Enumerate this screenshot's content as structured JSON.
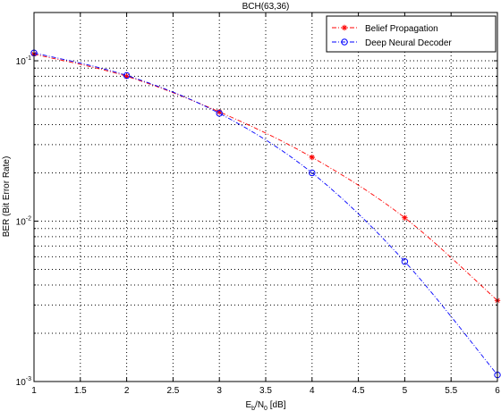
{
  "chart_data": {
    "type": "line",
    "title": "BCH(63,36)",
    "xlabel": {
      "base": "E",
      "sub1": "b",
      "mid": "/N",
      "sub2": "0",
      "tail": " [dB]"
    },
    "ylabel": "BER (Bit Error Rate)",
    "xlim": [
      1,
      6
    ],
    "ylim": [
      0.001,
      0.2
    ],
    "yscale": "log",
    "grid": true,
    "legend_position": "top-right",
    "x_ticks": [
      1,
      1.5,
      2,
      2.5,
      3,
      3.5,
      4,
      4.5,
      5,
      5.5,
      6
    ],
    "x_tick_labels": [
      "1",
      "1.5",
      "2",
      "2.5",
      "3",
      "3.5",
      "4",
      "4.5",
      "5",
      "5.5",
      "6"
    ],
    "y_ticks": [
      {
        "value": 0.1,
        "base": "10",
        "exp": "-1"
      },
      {
        "value": 0.01,
        "base": "10",
        "exp": "-2"
      },
      {
        "value": 0.001,
        "base": "10",
        "exp": "-3"
      }
    ],
    "series": [
      {
        "name": "Belief Propagation",
        "color": "#ff0000",
        "marker": "star",
        "line": "dashdot",
        "x": [
          1,
          2,
          3,
          4,
          5,
          6
        ],
        "y": [
          0.11,
          0.08,
          0.048,
          0.025,
          0.0105,
          0.0032
        ]
      },
      {
        "name": "Deep Neural Decoder",
        "color": "#0000ff",
        "marker": "circle",
        "line": "dashdot",
        "x": [
          1,
          2,
          3,
          4,
          5,
          6
        ],
        "y": [
          0.112,
          0.081,
          0.047,
          0.02,
          0.0056,
          0.0011
        ]
      }
    ]
  }
}
